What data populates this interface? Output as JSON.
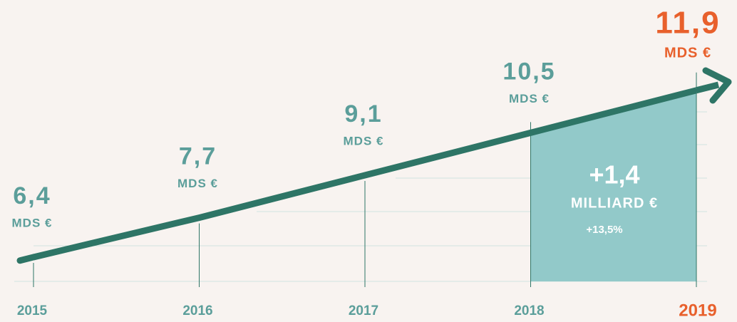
{
  "chart_data": {
    "type": "line",
    "categories": [
      "2015",
      "2016",
      "2017",
      "2018",
      "2019"
    ],
    "series": [
      {
        "name": null,
        "color": "#2e7566",
        "values": [
          6.4,
          7.7,
          9.1,
          10.5,
          11.9
        ],
        "value_labels": [
          "6,4",
          "7,7",
          "9,1",
          "10,5",
          "11,9"
        ]
      }
    ],
    "unit": "MDS €",
    "ylim": [
      5.6,
      12.6
    ],
    "label_color": "#5b9e9a",
    "highlight_color": "#e8602c",
    "annotation": {
      "value": "+1,4",
      "unit": "MILLIARD €",
      "percent": "+13,5%",
      "color": "#92c9c9"
    }
  }
}
